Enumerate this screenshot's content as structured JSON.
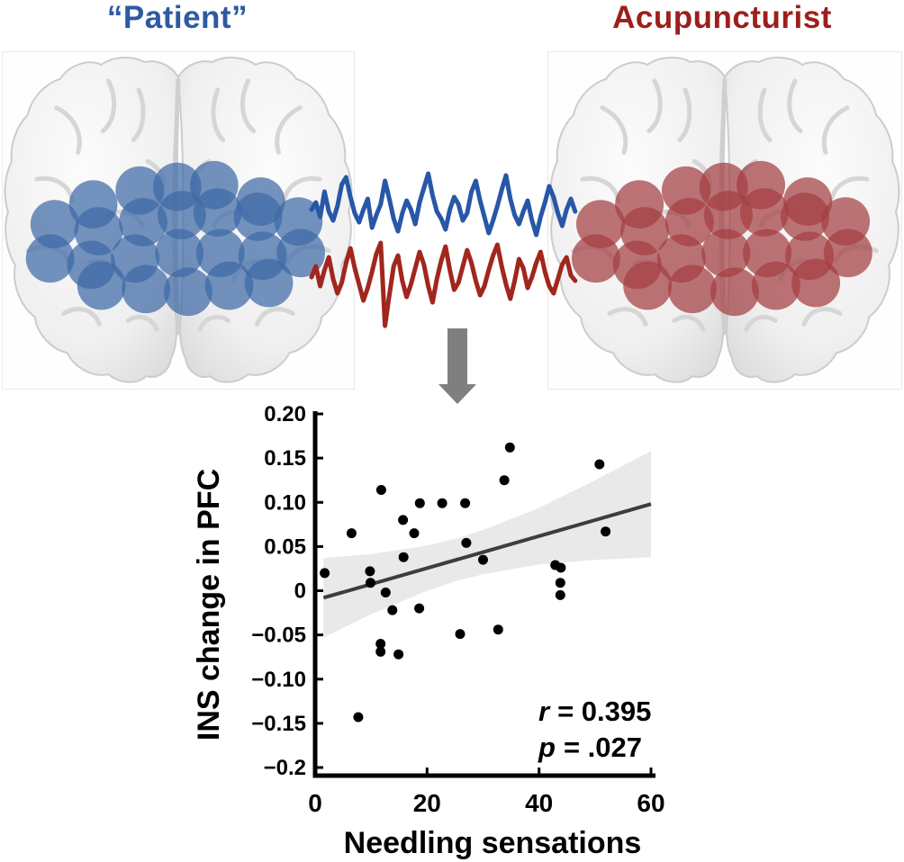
{
  "header": {
    "patient_title": "“Patient”",
    "acupuncturist_title": "Acupuncturist"
  },
  "colors": {
    "patient_title_blue": "#2d5aa3",
    "acupuncturist_title_red": "#9c1f1c",
    "signal_blue": "#2857a8",
    "signal_red": "#a1261e",
    "optode_blue": "#3e6aa6",
    "optode_red": "#a33e42",
    "arrow_gray": "#7f7f7f",
    "band_gray": "#e9e9e9",
    "regression_line_dark": "#3d3d3d",
    "point_black": "#000000"
  },
  "brains": {
    "optode_radius": 27,
    "optode_opacity": 0.72,
    "optode_layout": [
      [
        0.258,
        0.452
      ],
      [
        0.39,
        0.411
      ],
      [
        0.497,
        0.4
      ],
      [
        0.602,
        0.395
      ],
      [
        0.735,
        0.444
      ],
      [
        0.148,
        0.511
      ],
      [
        0.273,
        0.532
      ],
      [
        0.4,
        0.505
      ],
      [
        0.51,
        0.484
      ],
      [
        0.612,
        0.476
      ],
      [
        0.727,
        0.489
      ],
      [
        0.842,
        0.503
      ],
      [
        0.135,
        0.613
      ],
      [
        0.252,
        0.632
      ],
      [
        0.377,
        0.613
      ],
      [
        0.503,
        0.597
      ],
      [
        0.62,
        0.597
      ],
      [
        0.74,
        0.605
      ],
      [
        0.849,
        0.597
      ],
      [
        0.281,
        0.694
      ],
      [
        0.408,
        0.704
      ],
      [
        0.528,
        0.712
      ],
      [
        0.645,
        0.694
      ],
      [
        0.758,
        0.686
      ]
    ]
  },
  "signals": {
    "patient": {
      "color": "#2857a8",
      "samples": [
        2,
        -6,
        10,
        -18,
        4,
        14,
        -2,
        -26,
        -34,
        -12,
        6,
        16,
        2,
        -10,
        22,
        8,
        -4,
        -30,
        -10,
        12,
        26,
        6,
        -8,
        2,
        18,
        -6,
        -22,
        -38,
        -14,
        4,
        12,
        24,
        2,
        -12,
        -4,
        14,
        6,
        -18,
        -30,
        -8,
        10,
        28,
        14,
        -2,
        -20,
        -36,
        -10,
        8,
        18,
        4,
        -8,
        14,
        30,
        10,
        -6,
        -24,
        -12,
        6,
        20,
        2,
        -10,
        4
      ]
    },
    "acupuncturist": {
      "color": "#a1261e",
      "samples": [
        4,
        -8,
        14,
        -4,
        -18,
        6,
        22,
        10,
        -12,
        -28,
        -6,
        12,
        30,
        16,
        -2,
        -22,
        -34,
        58,
        24,
        -8,
        -20,
        8,
        26,
        12,
        -6,
        -24,
        -10,
        14,
        32,
        6,
        -14,
        -30,
        -4,
        18,
        10,
        -8,
        -26,
        -12,
        8,
        24,
        14,
        -4,
        -20,
        -32,
        -8,
        12,
        28,
        8,
        -16,
        -6,
        16,
        4,
        -12,
        -24,
        -2,
        14,
        22,
        6,
        -10,
        -18,
        2,
        8
      ]
    }
  },
  "chart_data": {
    "type": "scatter",
    "xlabel": "Needling sensations",
    "ylabel": "INS change in PFC",
    "xlim": [
      0,
      60
    ],
    "ylim": [
      -0.2,
      0.2
    ],
    "grid": false,
    "x_ticks": {
      "values": [
        0,
        20,
        40,
        60
      ],
      "labels": [
        "0",
        "20",
        "40",
        "60"
      ]
    },
    "y_ticks": {
      "values": [
        0.2,
        0.15,
        0.1,
        0.05,
        0,
        -0.05,
        -0.1,
        -0.15,
        -0.2
      ],
      "labels": [
        "0.20",
        "0.15",
        "0.10",
        "0.05",
        "0",
        "−0.05",
        "−0.10",
        "−0.15",
        "−0.2"
      ]
    },
    "points": [
      [
        34.8,
        0.162
      ],
      [
        50.8,
        0.143
      ],
      [
        33.8,
        0.125
      ],
      [
        11.8,
        0.114
      ],
      [
        18.7,
        0.099
      ],
      [
        22.7,
        0.099
      ],
      [
        26.8,
        0.099
      ],
      [
        15.7,
        0.08
      ],
      [
        6.5,
        0.065
      ],
      [
        17.7,
        0.065
      ],
      [
        51.9,
        0.067
      ],
      [
        27.0,
        0.054
      ],
      [
        15.8,
        0.038
      ],
      [
        30.0,
        0.035
      ],
      [
        1.7,
        0.02
      ],
      [
        9.8,
        0.022
      ],
      [
        9.9,
        0.009
      ],
      [
        12.6,
        -0.002
      ],
      [
        42.9,
        0.029
      ],
      [
        43.9,
        0.026
      ],
      [
        43.8,
        0.009
      ],
      [
        43.8,
        -0.005
      ],
      [
        13.8,
        -0.022
      ],
      [
        18.6,
        -0.02
      ],
      [
        25.9,
        -0.049
      ],
      [
        32.7,
        -0.044
      ],
      [
        11.7,
        -0.06
      ],
      [
        11.7,
        -0.069
      ],
      [
        14.9,
        -0.072
      ],
      [
        7.7,
        -0.143
      ]
    ],
    "regression_line": {
      "x": [
        1.5,
        60
      ],
      "y": [
        -0.008,
        0.098
      ]
    },
    "confidence_band": {
      "x": [
        1.5,
        10,
        20,
        25,
        30,
        40,
        50,
        60
      ],
      "half_width": [
        0.045,
        0.034,
        0.0255,
        0.024,
        0.025,
        0.032,
        0.045,
        0.06
      ]
    },
    "annotations": {
      "r_var": "r",
      "r_rest": "= 0.395",
      "p_var": "p",
      "p_rest": "= .027"
    }
  }
}
